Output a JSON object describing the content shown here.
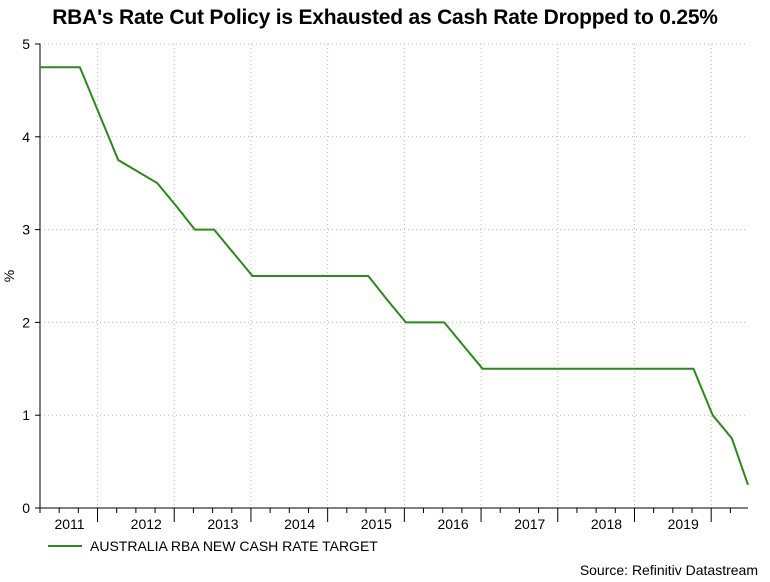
{
  "chart_data": {
    "type": "line",
    "title": "RBA's Rate Cut Policy is Exhausted as Cash Rate Dropped to 0.25%",
    "xlabel": "",
    "ylabel": "%",
    "ylim": [
      0,
      5
    ],
    "yticks": [
      0,
      1,
      2,
      3,
      4,
      5
    ],
    "xlim": [
      2010.75,
      2019.98
    ],
    "xticks": [
      2011,
      2012,
      2013,
      2014,
      2015,
      2016,
      2017,
      2018,
      2019
    ],
    "grid": true,
    "legend_position": "bottom-left",
    "color": "#2a8a1b",
    "series": [
      {
        "name": "AUSTRALIA RBA NEW CASH RATE TARGET",
        "x": [
          2010.75,
          2011.27,
          2011.77,
          2012.28,
          2012.53,
          2012.77,
          2013.02,
          2013.27,
          2013.52,
          2014.5,
          2015.03,
          2015.27,
          2015.52,
          2016.02,
          2016.52,
          2017.52,
          2018.52,
          2019.27,
          2019.52,
          2019.77,
          2019.98
        ],
        "y": [
          4.75,
          4.75,
          3.75,
          3.5,
          3.25,
          3.0,
          3.0,
          2.75,
          2.5,
          2.5,
          2.5,
          2.25,
          2.0,
          2.0,
          1.5,
          1.5,
          1.5,
          1.5,
          1.0,
          0.75,
          0.25
        ]
      }
    ]
  },
  "source": "Source: Refinitiv Datastream"
}
